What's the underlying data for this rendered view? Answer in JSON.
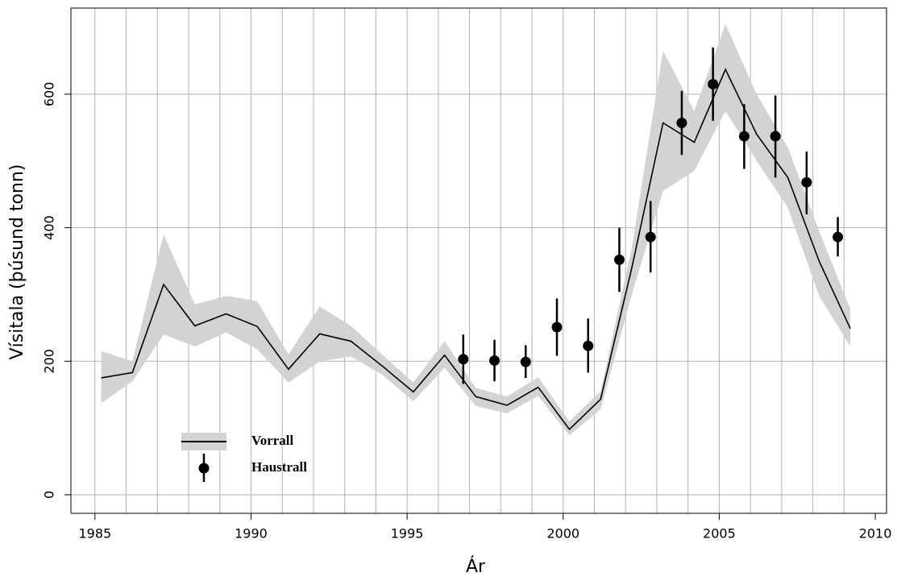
{
  "chart_data": {
    "type": "line",
    "xlabel": "Ár",
    "ylabel": "Vísitala (þúsund tonn)",
    "xlim": [
      1984.23,
      2010.36
    ],
    "ylim": [
      -27.8,
      729
    ],
    "xticks": [
      1985,
      1990,
      1995,
      2000,
      2005,
      2010
    ],
    "xminor": [
      1985,
      1986,
      1987,
      1988,
      1989,
      1990,
      1991,
      1992,
      1993,
      1994,
      1995,
      1996,
      1997,
      1998,
      1999,
      2000,
      2001,
      2002,
      2003,
      2004,
      2005,
      2006,
      2007,
      2008,
      2009
    ],
    "yticks": [
      0,
      200,
      400,
      600
    ],
    "grid": true,
    "legend": "bottom-left",
    "series": [
      {
        "name": "Vorrall",
        "type": "line",
        "color": "#000000",
        "band_color": "#d3d3d3",
        "x": [
          1985.2,
          1986.2,
          1987.2,
          1988.2,
          1989.2,
          1990.2,
          1991.2,
          1992.2,
          1993.2,
          1994.2,
          1995.2,
          1996.2,
          1997.2,
          1998.2,
          1999.2,
          2000.2,
          2001.2,
          2002.2,
          2003.2,
          2004.2,
          2005.2,
          2006.2,
          2007.2,
          2008.2,
          2009.2
        ],
        "values": [
          175,
          183,
          315,
          253,
          271,
          252,
          188,
          241,
          230,
          193,
          154,
          209,
          147,
          134,
          161,
          98,
          143,
          340,
          557,
          528,
          637,
          540,
          475,
          350,
          249
        ],
        "lower": [
          137,
          170,
          240,
          222,
          243,
          218,
          168,
          200,
          207,
          180,
          140,
          190,
          133,
          122,
          148,
          89,
          128,
          300,
          455,
          485,
          575,
          500,
          430,
          298,
          222
        ],
        "upper": [
          215,
          200,
          390,
          285,
          298,
          290,
          210,
          282,
          253,
          210,
          168,
          230,
          160,
          147,
          176,
          110,
          155,
          370,
          665,
          575,
          705,
          600,
          520,
          395,
          278
        ]
      },
      {
        "name": "Haustrall",
        "type": "errorbar",
        "color": "#000000",
        "x": [
          1996.8,
          1997.8,
          1998.8,
          1999.8,
          2000.8,
          2001.8,
          2002.8,
          2003.8,
          2004.8,
          2005.8,
          2006.8,
          2007.8,
          2008.8
        ],
        "values": [
          203,
          201,
          199,
          251,
          223,
          352,
          386,
          557,
          615,
          537,
          537,
          468,
          386
        ],
        "lower": [
          166,
          170,
          175,
          208,
          183,
          304,
          333,
          509,
          560,
          488,
          475,
          420,
          357
        ],
        "upper": [
          240,
          232,
          224,
          294,
          264,
          400,
          440,
          605,
          670,
          585,
          598,
          514,
          416
        ]
      }
    ]
  }
}
